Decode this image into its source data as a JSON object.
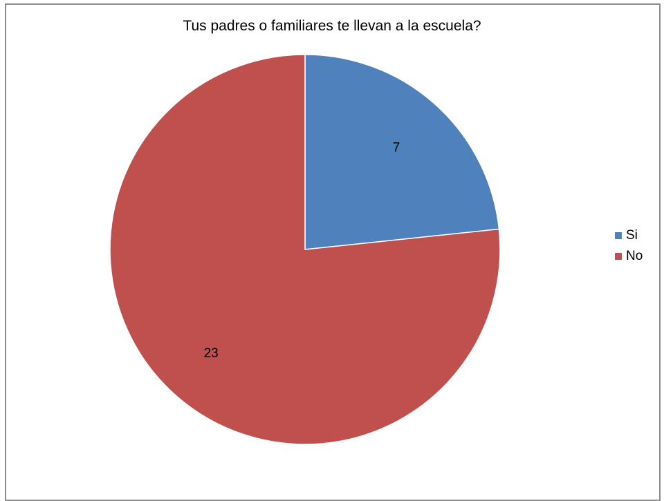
{
  "chart_data": {
    "type": "pie",
    "title": "Tus padres o familiares te llevan a la escuela?",
    "categories": [
      "Si",
      "No"
    ],
    "values": [
      7,
      23
    ],
    "data_labels": [
      "7",
      "23"
    ],
    "colors": [
      "#4f81bd",
      "#c0504d"
    ],
    "legend": {
      "placement": "right",
      "entries": [
        "Si",
        "No"
      ]
    }
  }
}
